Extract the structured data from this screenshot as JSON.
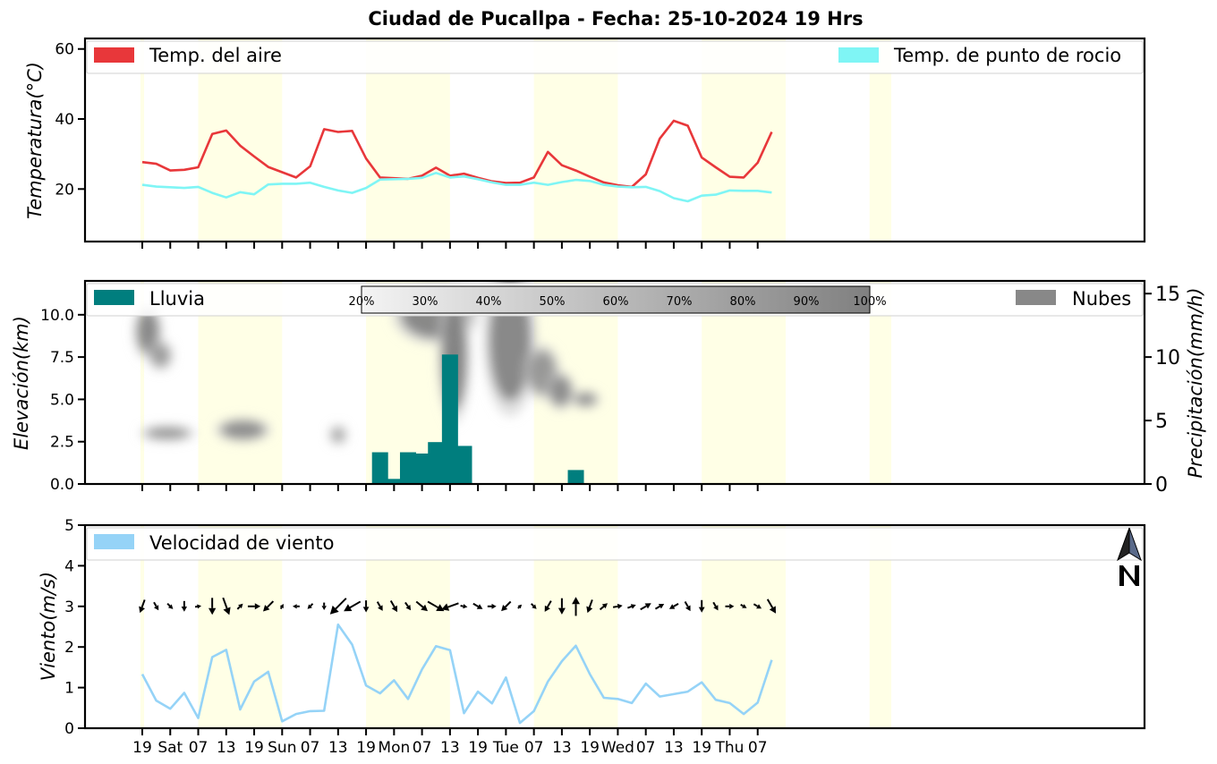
{
  "title": "Ciudad de Pucallpa   -   Fecha: 25-10-2024 19 Hrs",
  "x_tick_labels": [
    "19",
    "Sat",
    "07",
    "13",
    "19",
    "Sun",
    "07",
    "13",
    "19",
    "Mon",
    "07",
    "13",
    "19",
    "Tue",
    "07",
    "13",
    "19",
    "Wed",
    "07",
    "13",
    "19",
    "Thu",
    "07"
  ],
  "colors": {
    "air_temp": "#e8373a",
    "dew_point": "#7ff5f5",
    "rain": "#007e7e",
    "clouds": "#888888",
    "wind_speed": "#95d3f7",
    "daylight": "#ffffe6"
  },
  "icons": {
    "north_arrow": "north-arrow-icon"
  },
  "chart_data": [
    {
      "type": "line",
      "ylabel": "Temperatura(°C)",
      "ylim": [
        5,
        63
      ],
      "yticks": [
        "20",
        "40",
        "60"
      ],
      "legend_placement": "top",
      "x_step_hours": 3,
      "series": [
        {
          "name": "Temp. del aire",
          "values": [
            27.7,
            27.2,
            25.3,
            25.5,
            26.2,
            35.7,
            36.7,
            32.4,
            29.3,
            26.3,
            24.8,
            23.3,
            26.5,
            37.1,
            36.3,
            36.6,
            28.7,
            23.3,
            23.1,
            22.9,
            23.8,
            26.1,
            23.8,
            24.4,
            23.2,
            22.2,
            21.7,
            21.8,
            23.3,
            30.6,
            26.8,
            25.3,
            23.5,
            21.9,
            21.1,
            20.6,
            24.2,
            34.4,
            39.5,
            38.1,
            29.0,
            26.2,
            23.5,
            23.3,
            27.5,
            36.3
          ]
        },
        {
          "name": "Temp. de punto de rocio",
          "values": [
            21.2,
            20.7,
            20.5,
            20.3,
            20.6,
            18.9,
            17.6,
            19.1,
            18.5,
            21.3,
            21.5,
            21.5,
            21.8,
            20.6,
            19.6,
            18.9,
            20.3,
            22.7,
            22.8,
            22.9,
            23.2,
            24.6,
            23.3,
            23.6,
            22.8,
            21.9,
            21.2,
            21.2,
            21.8,
            21.2,
            22.0,
            22.6,
            22.3,
            21.2,
            20.7,
            20.5,
            20.6,
            19.4,
            17.4,
            16.5,
            18.1,
            18.4,
            19.6,
            19.5,
            19.5,
            19.0
          ]
        }
      ]
    },
    {
      "type": "bar",
      "ylabel_left": "Elevación(km)",
      "ylabel_right": "Precipitación(mm/h)",
      "ylim_left": [
        0,
        12.0
      ],
      "ylim_right": [
        0,
        16
      ],
      "yticks_left": [
        "0.0",
        "2.5",
        "5.0",
        "7.5",
        "10.0"
      ],
      "yticks_right": [
        "0",
        "5",
        "10",
        "15"
      ],
      "series": [
        {
          "name": "Lluvia",
          "values": [
            0,
            0,
            0,
            0,
            0,
            0,
            0,
            0,
            0,
            0,
            0,
            0,
            0,
            0,
            0,
            0,
            0,
            2.5,
            0.4,
            2.5,
            2.4,
            3.3,
            10.2,
            3.0,
            0,
            0,
            0,
            0,
            0,
            0,
            0,
            1.1,
            0,
            0,
            0,
            0,
            0,
            0,
            0,
            0,
            0,
            0,
            0,
            0,
            0,
            0
          ]
        }
      ],
      "cloud_layer": {
        "name": "Nubes",
        "colorbar_labels": [
          "20%",
          "30%",
          "40%",
          "50%",
          "60%",
          "70%",
          "80%",
          "90%",
          "100%"
        ],
        "blobs": [
          {
            "t": 0.4,
            "elev": 9.0,
            "w": 1.6,
            "h": 2.6,
            "cover": 0.9
          },
          {
            "t": 1.3,
            "elev": 7.6,
            "w": 1.4,
            "h": 1.4,
            "cover": 0.7
          },
          {
            "t": 1.8,
            "elev": 3.0,
            "w": 3.2,
            "h": 0.7,
            "cover": 0.8
          },
          {
            "t": 7.2,
            "elev": 3.2,
            "w": 3.2,
            "h": 1.1,
            "cover": 0.85
          },
          {
            "t": 14.0,
            "elev": 2.9,
            "w": 1.0,
            "h": 0.9,
            "cover": 0.6
          },
          {
            "t": 21.0,
            "elev": 10.0,
            "w": 5.0,
            "h": 2.8,
            "cover": 0.9
          },
          {
            "t": 22.3,
            "elev": 7.6,
            "w": 1.8,
            "h": 6.5,
            "cover": 0.95
          },
          {
            "t": 26.3,
            "elev": 8.5,
            "w": 3.0,
            "h": 7.2,
            "cover": 0.9
          },
          {
            "t": 28.6,
            "elev": 6.6,
            "w": 2.0,
            "h": 2.6,
            "cover": 0.75
          },
          {
            "t": 29.9,
            "elev": 5.5,
            "w": 1.6,
            "h": 1.8,
            "cover": 0.85
          },
          {
            "t": 31.7,
            "elev": 5.0,
            "w": 1.6,
            "h": 0.8,
            "cover": 0.8
          }
        ]
      }
    },
    {
      "type": "line",
      "ylabel": "Viento(m/s)",
      "ylim": [
        0,
        5
      ],
      "yticks": [
        "0",
        "1",
        "2",
        "3",
        "4",
        "5"
      ],
      "series": [
        {
          "name": "Velocidad de viento",
          "values": [
            1.33,
            0.68,
            0.48,
            0.87,
            0.25,
            1.75,
            1.93,
            0.46,
            1.15,
            1.39,
            0.17,
            0.35,
            0.42,
            0.43,
            2.55,
            2.06,
            1.05,
            0.86,
            1.18,
            0.72,
            1.45,
            2.02,
            1.92,
            0.37,
            0.9,
            0.61,
            1.25,
            0.13,
            0.42,
            1.15,
            1.65,
            2.03,
            1.33,
            0.75,
            0.72,
            0.62,
            1.1,
            0.78,
            0.84,
            0.9,
            1.13,
            0.7,
            0.62,
            0.35,
            0.63,
            1.68
          ]
        }
      ],
      "wind_direction_from_deg": [
        20,
        330,
        315,
        0,
        260,
        0,
        340,
        225,
        270,
        45,
        210,
        90,
        45,
        0,
        45,
        60,
        0,
        330,
        330,
        325,
        310,
        300,
        70,
        280,
        300,
        270,
        45,
        225,
        315,
        30,
        0,
        180,
        20,
        230,
        260,
        250,
        240,
        240,
        60,
        330,
        0,
        330,
        270,
        300,
        300,
        330
      ]
    }
  ]
}
